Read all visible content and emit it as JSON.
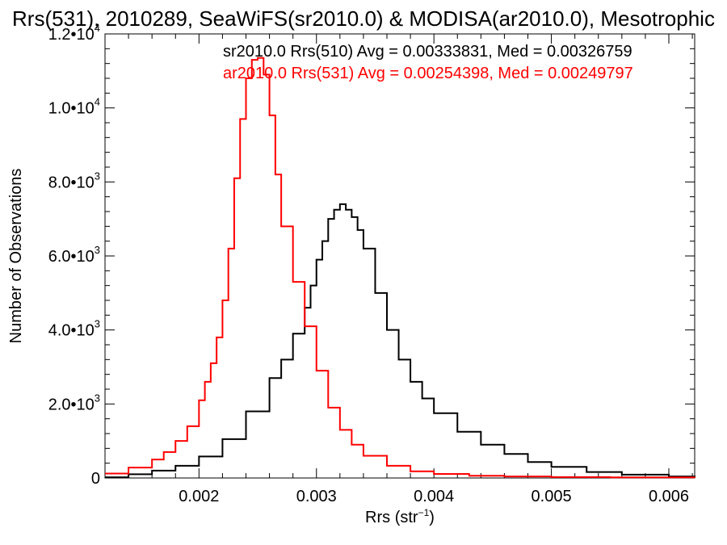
{
  "chart_data": {
    "type": "line",
    "title": "Rrs(531), 2010289, SeaWiFS(sr2010.0) & MODISA(ar2010.0), Mesotrophic",
    "xlabel": "Rrs (str",
    "xlabel_sup": "−1",
    "xlabel_close": ")",
    "ylabel": "Number of Observations",
    "xlim": [
      0.0012,
      0.00622
    ],
    "ylim": [
      0,
      12000
    ],
    "x_ticks": [
      {
        "value": 0.002,
        "label": "0.002"
      },
      {
        "value": 0.003,
        "label": "0.003"
      },
      {
        "value": 0.004,
        "label": "0.004"
      },
      {
        "value": 0.005,
        "label": "0.005"
      },
      {
        "value": 0.006,
        "label": "0.006"
      }
    ],
    "y_ticks": [
      {
        "value": 0,
        "mant": "0",
        "exp": ""
      },
      {
        "value": 2000,
        "mant": "2.0•10",
        "exp": "3"
      },
      {
        "value": 4000,
        "mant": "4.0•10",
        "exp": "3"
      },
      {
        "value": 6000,
        "mant": "6.0•10",
        "exp": "3"
      },
      {
        "value": 8000,
        "mant": "8.0•10",
        "exp": "3"
      },
      {
        "value": 10000,
        "mant": "1.0•10",
        "exp": "4"
      },
      {
        "value": 12000,
        "mant": "1.2•10",
        "exp": "4"
      }
    ],
    "legend": [
      {
        "text": "sr2010.0 Rrs(510) Avg = 0.00333831, Med = 0.00326759",
        "color": "#000000"
      },
      {
        "text": "ar2010.0 Rrs(531) Avg = 0.00254398, Med = 0.00249797",
        "color": "#ff0000"
      }
    ],
    "series": [
      {
        "color": "#000000",
        "points": [
          [
            0.0012,
            20
          ],
          [
            0.0014,
            100
          ],
          [
            0.0016,
            200
          ],
          [
            0.0018,
            330
          ],
          [
            0.002,
            580
          ],
          [
            0.0022,
            1050
          ],
          [
            0.0024,
            1800
          ],
          [
            0.0026,
            2700
          ],
          [
            0.0027,
            3200
          ],
          [
            0.0028,
            3900
          ],
          [
            0.0029,
            4600
          ],
          [
            0.00295,
            5200
          ],
          [
            0.003,
            5900
          ],
          [
            0.00305,
            6400
          ],
          [
            0.0031,
            7000
          ],
          [
            0.00315,
            7250
          ],
          [
            0.0032,
            7400
          ],
          [
            0.00325,
            7250
          ],
          [
            0.0033,
            7050
          ],
          [
            0.00335,
            6700
          ],
          [
            0.0034,
            6200
          ],
          [
            0.0035,
            5000
          ],
          [
            0.0036,
            4000
          ],
          [
            0.0037,
            3200
          ],
          [
            0.0038,
            2600
          ],
          [
            0.0039,
            2150
          ],
          [
            0.004,
            1750
          ],
          [
            0.0042,
            1250
          ],
          [
            0.0044,
            900
          ],
          [
            0.0046,
            650
          ],
          [
            0.0048,
            430
          ],
          [
            0.005,
            300
          ],
          [
            0.0053,
            160
          ],
          [
            0.0056,
            90
          ],
          [
            0.006,
            40
          ],
          [
            0.00622,
            10
          ]
        ]
      },
      {
        "color": "#ff0000",
        "points": [
          [
            0.0012,
            120
          ],
          [
            0.0014,
            280
          ],
          [
            0.0016,
            500
          ],
          [
            0.0017,
            700
          ],
          [
            0.0018,
            1000
          ],
          [
            0.0019,
            1400
          ],
          [
            0.002,
            2100
          ],
          [
            0.00205,
            2600
          ],
          [
            0.0021,
            3100
          ],
          [
            0.00215,
            3800
          ],
          [
            0.0022,
            4800
          ],
          [
            0.00225,
            6200
          ],
          [
            0.0023,
            8100
          ],
          [
            0.00235,
            9700
          ],
          [
            0.0024,
            10800
          ],
          [
            0.00245,
            11300
          ],
          [
            0.0025,
            11350
          ],
          [
            0.00255,
            10900
          ],
          [
            0.0026,
            9800
          ],
          [
            0.00265,
            8200
          ],
          [
            0.0027,
            6800
          ],
          [
            0.0028,
            5300
          ],
          [
            0.0029,
            4100
          ],
          [
            0.003,
            2900
          ],
          [
            0.0031,
            1900
          ],
          [
            0.0032,
            1300
          ],
          [
            0.0033,
            900
          ],
          [
            0.0034,
            600
          ],
          [
            0.0036,
            330
          ],
          [
            0.0038,
            180
          ],
          [
            0.004,
            110
          ],
          [
            0.0043,
            60
          ],
          [
            0.0046,
            40
          ],
          [
            0.005,
            25
          ],
          [
            0.0055,
            15
          ],
          [
            0.00622,
            5
          ]
        ]
      }
    ]
  }
}
